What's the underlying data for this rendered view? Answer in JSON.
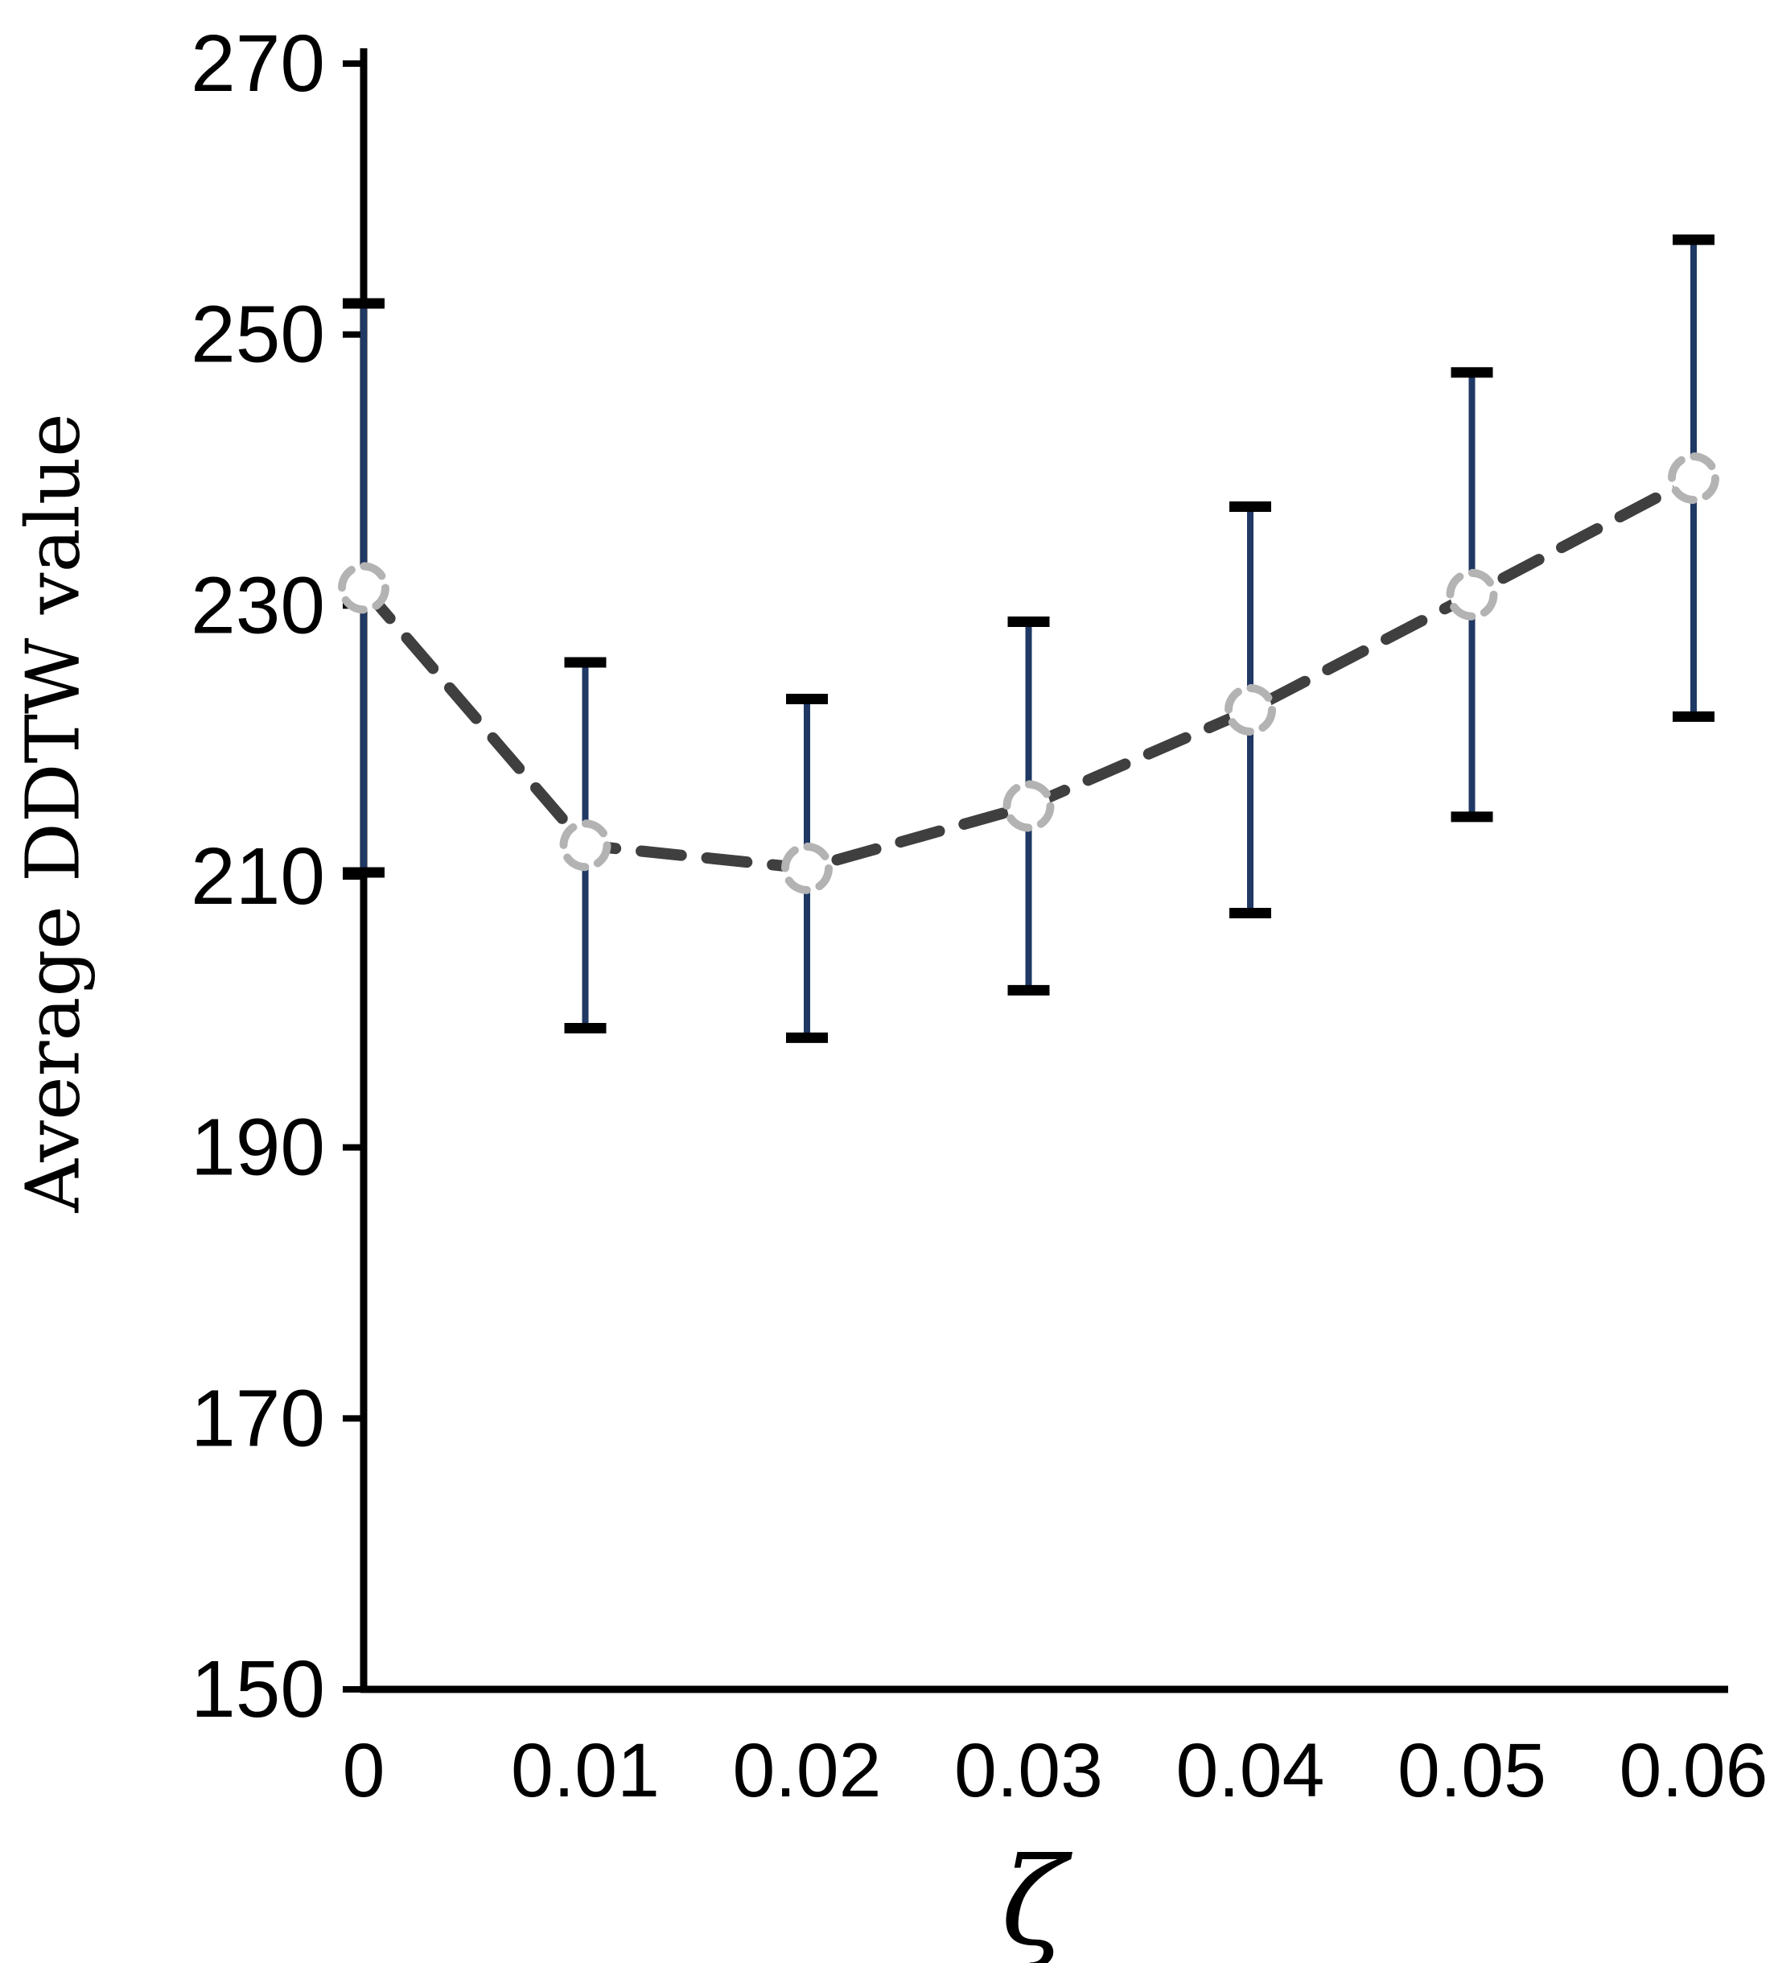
{
  "chart_data": {
    "type": "line",
    "title": "",
    "xlabel": "ζ",
    "ylabel": "Average DDTW value",
    "x": [
      0,
      0.01,
      0.02,
      0.03,
      0.04,
      0.05,
      0.06
    ],
    "x_tick_labels": [
      "0",
      "0.01",
      "0.02",
      "0.03",
      "0.04",
      "0.05",
      "0.06"
    ],
    "series": [
      {
        "name": "Average DDTW value",
        "values": [
          231.3,
          212.3,
          210.6,
          215.2,
          222.3,
          230.8,
          239.4
        ],
        "error_upper": [
          252.3,
          225.8,
          223.1,
          228.8,
          237.3,
          247.2,
          257.0
        ],
        "error_lower": [
          210.3,
          198.8,
          198.1,
          201.6,
          207.3,
          214.4,
          221.8
        ],
        "line_style": "dashed",
        "marker": "open-dashed-circle"
      }
    ],
    "ylim": [
      150,
      270
    ],
    "yticks": [
      150,
      170,
      190,
      210,
      230,
      250,
      270
    ],
    "grid": false,
    "legend_position": "none",
    "colors": {
      "axis": "#000000",
      "tick_label": "#000000",
      "line": "#3f3f3f",
      "marker_ring": "#b3b3b3",
      "marker_fill": "#ffffff",
      "error_bar": "#1f3864",
      "error_cap": "#000000",
      "background": "#ffffff"
    }
  }
}
